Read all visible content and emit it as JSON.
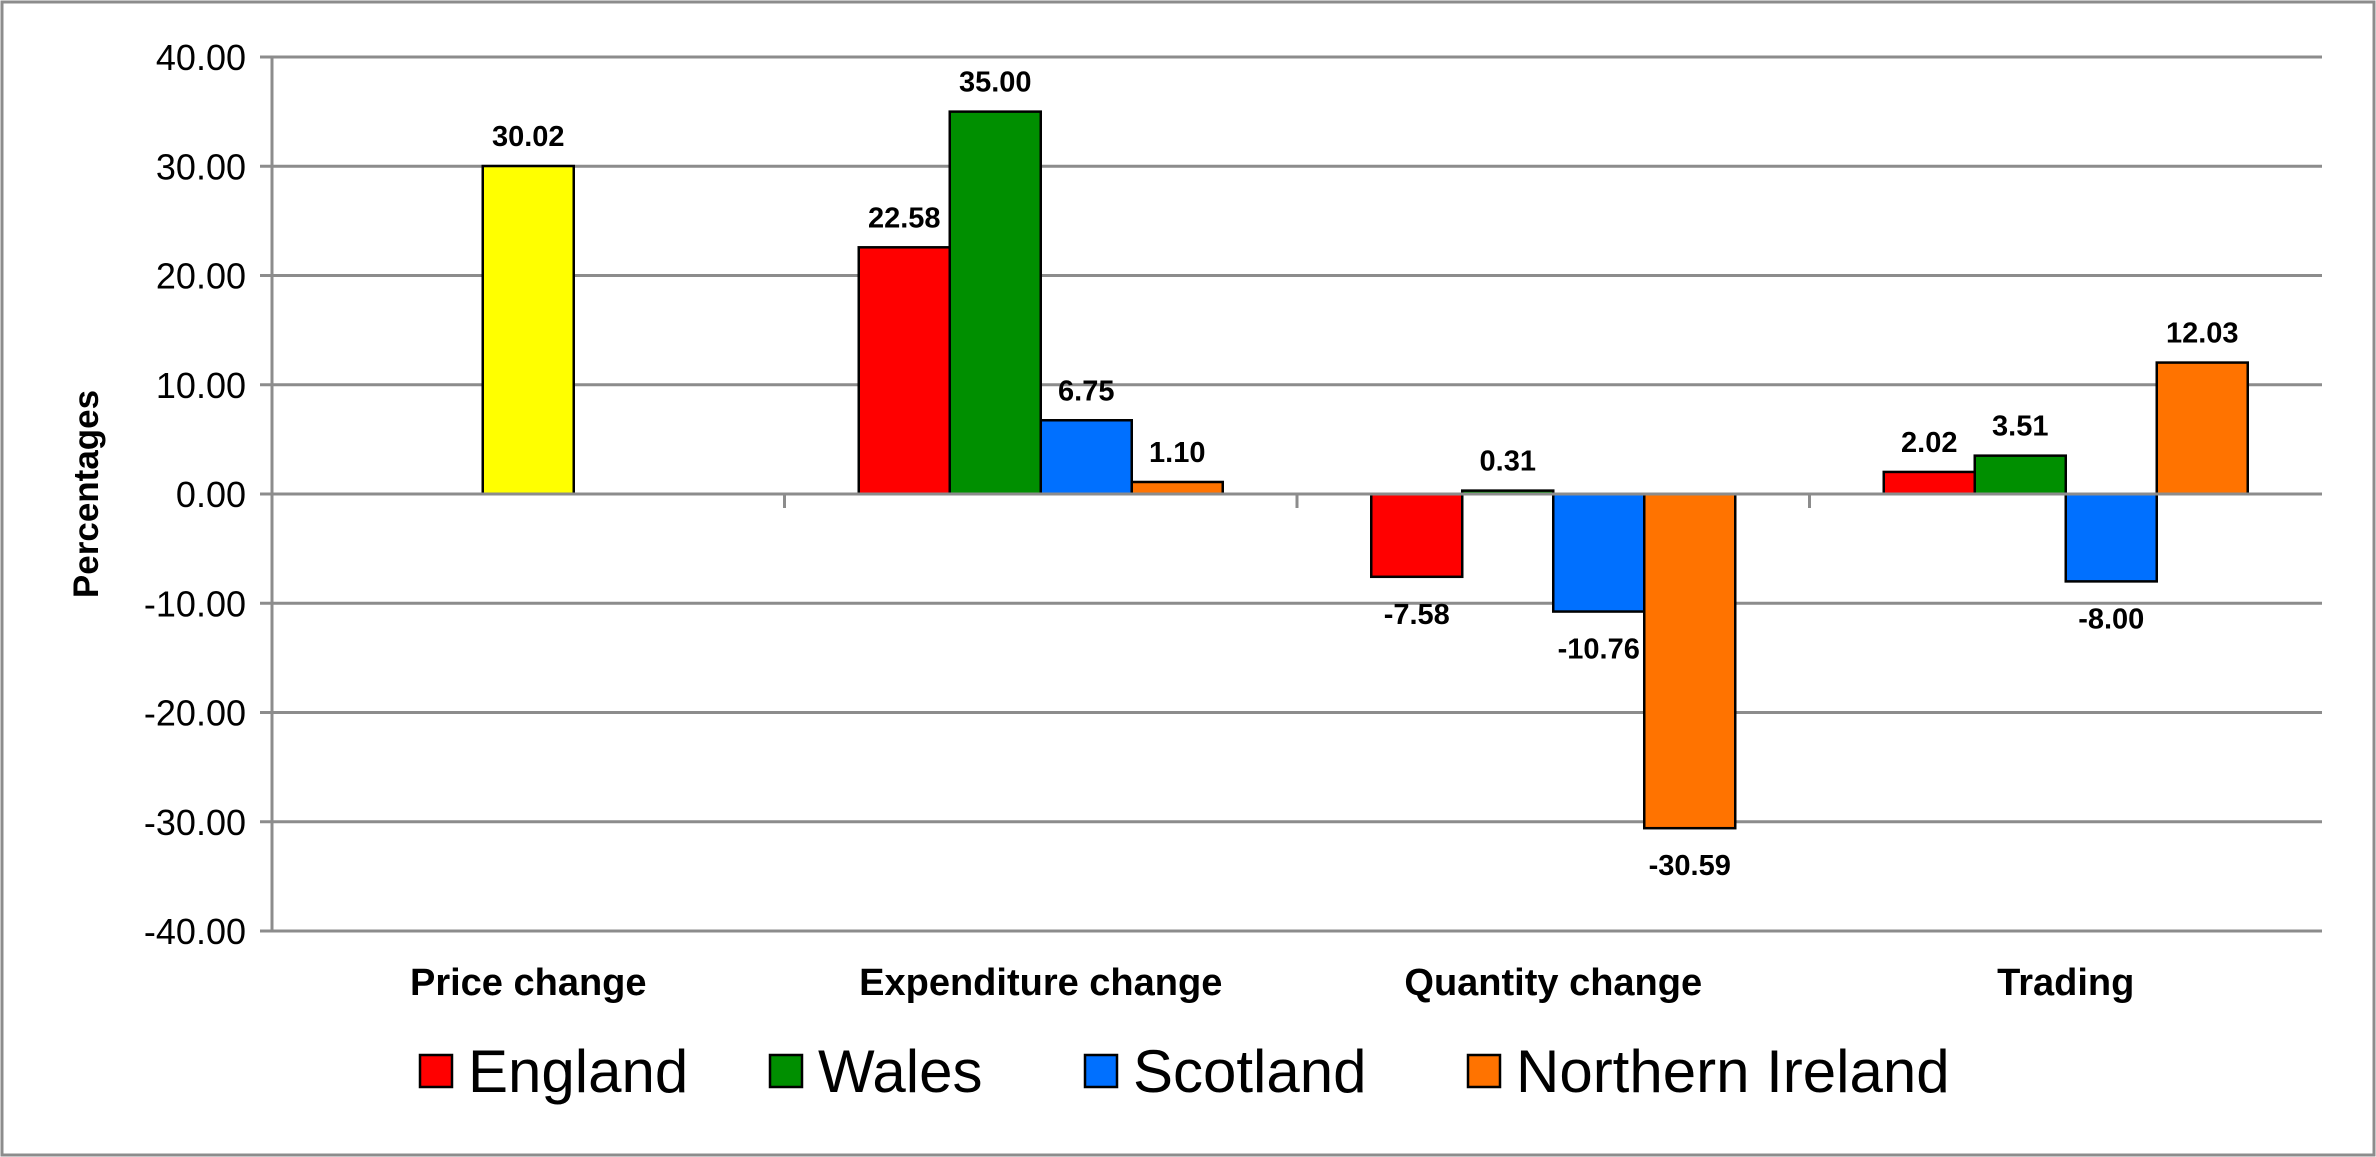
{
  "chart_data": {
    "type": "bar",
    "title": "",
    "xlabel": "",
    "ylabel": "Percentages",
    "ylim": [
      -40,
      40
    ],
    "ytick_step": 10,
    "grid": true,
    "legend_position": "bottom",
    "categories": [
      "Price change",
      "Expenditure change",
      "Quantity change",
      "Trading"
    ],
    "series": [
      {
        "name": "England",
        "color": "#ff0000",
        "values": [
          null,
          22.58,
          -7.58,
          2.02
        ],
        "labels": [
          null,
          "22.58",
          "-7.58",
          "2.02"
        ]
      },
      {
        "name": "Wales",
        "color": "#008f00",
        "values": [
          null,
          35.0,
          0.31,
          3.51
        ],
        "labels": [
          null,
          "35.00",
          "0.31",
          "3.51"
        ]
      },
      {
        "name": "Scotland",
        "color": "#0070ff",
        "values": [
          null,
          6.75,
          -10.76,
          -8.0
        ],
        "labels": [
          null,
          "6.75",
          "-10.76",
          "-8.00"
        ]
      },
      {
        "name": "Northern Ireland",
        "color": "#ff7300",
        "values": [
          null,
          1.1,
          -30.59,
          12.03
        ],
        "labels": [
          null,
          "1.10",
          "-30.59",
          "12.03"
        ]
      }
    ],
    "extra_bars": [
      {
        "category": "Price change",
        "value": 30.02,
        "label": "30.02",
        "color": "#ffff00"
      }
    ],
    "yticks": [
      "40.00",
      "30.00",
      "20.00",
      "10.00",
      "0.00",
      "-10.00",
      "-20.00",
      "-30.00",
      "-40.00"
    ]
  }
}
